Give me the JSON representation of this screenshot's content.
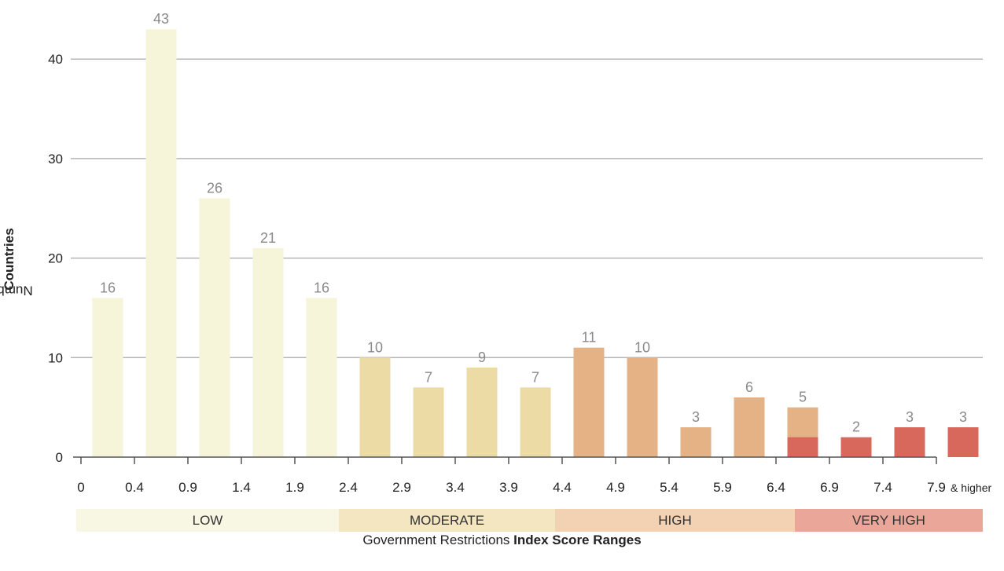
{
  "chart_data": {
    "type": "bar",
    "categories": [
      "0",
      "0.4",
      "0.9",
      "1.4",
      "1.9",
      "2.4",
      "2.9",
      "3.4",
      "3.9",
      "4.4",
      "4.9",
      "5.4",
      "5.9",
      "6.4",
      "6.9",
      "7.4",
      "7.9"
    ],
    "tick_suffix": "& higher",
    "values": [
      16,
      43,
      26,
      21,
      16,
      10,
      7,
      9,
      7,
      11,
      10,
      3,
      6,
      5,
      2,
      3,
      3
    ],
    "stacked_very_high": [
      0,
      0,
      0,
      0,
      0,
      0,
      0,
      0,
      0,
      0,
      0,
      0,
      0,
      2,
      2,
      3,
      3
    ],
    "bar_category": [
      "LOW",
      "LOW",
      "LOW",
      "LOW",
      "LOW",
      "MODERATE",
      "MODERATE",
      "MODERATE",
      "MODERATE",
      "HIGH",
      "HIGH",
      "HIGH",
      "HIGH",
      "HIGH",
      "VERY HIGH",
      "VERY HIGH",
      "VERY HIGH"
    ],
    "yticks": [
      0,
      10,
      20,
      30,
      40
    ],
    "ylim": [
      0,
      45
    ],
    "grid": true,
    "ylabel_prefix": "Number of ",
    "ylabel_bold": "Countries",
    "xlabel_prefix": "Government Restrictions ",
    "xlabel_bold": "Index Score Ranges",
    "bands": [
      {
        "label": "LOW",
        "from": 0,
        "to": 2.4
      },
      {
        "label": "MODERATE",
        "from": 2.4,
        "to": 4.4
      },
      {
        "label": "HIGH",
        "from": 4.4,
        "to": 6.6
      },
      {
        "label": "VERY HIGH",
        "from": 6.6,
        "to": 8.4
      }
    ],
    "colors": {
      "LOW": "#f6f5d9",
      "MODERATE": "#eddba6",
      "HIGH": "#e5b286",
      "VERY HIGH": "#d9685c",
      "band_LOW": "#f8f7e4",
      "band_MODERATE": "#f4e6c1",
      "band_HIGH": "#f3d1b3",
      "band_VERY HIGH": "#e9a699",
      "grid": "#b5b5b5",
      "value_label": "#8a8a8a"
    }
  }
}
